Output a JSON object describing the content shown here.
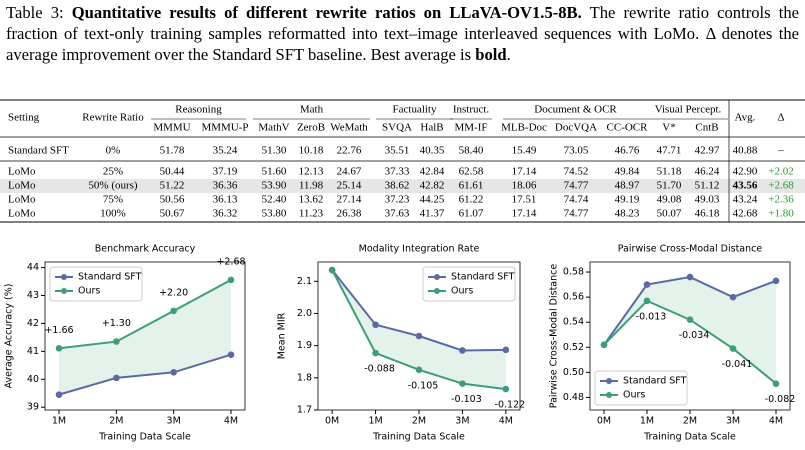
{
  "caption": {
    "label": "Table 3:",
    "title": "Quantitative results of different rewrite ratios on LLaVA-OV1.5-8B.",
    "text": "The rewrite ratio controls the fraction of text-only training samples reformatted into text–image interleaved sequences with LoMo. Δ denotes the average improvement over the Standard SFT baseline. Best average is",
    "bold_word": "bold",
    "end": "."
  },
  "table": {
    "left_columns": [
      "Setting",
      "Rewrite Ratio"
    ],
    "groups": [
      {
        "label": "Reasoning",
        "columns": [
          "MMMU",
          "MMMU-P"
        ]
      },
      {
        "label": "Math",
        "columns": [
          "MathV",
          "ZeroB",
          "WeMath"
        ]
      },
      {
        "label": "Factuality",
        "columns": [
          "SVQA",
          "HalB"
        ]
      },
      {
        "label": "Instruct.",
        "columns": [
          "MM-IF"
        ]
      },
      {
        "label": "Document & OCR",
        "columns": [
          "MLB-Doc",
          "DocVQA",
          "CC-OCR"
        ]
      },
      {
        "label": "Visual Percept.",
        "columns": [
          "V*",
          "CntB"
        ]
      }
    ],
    "right_columns": [
      "Avg.",
      "Δ"
    ],
    "rows": [
      [
        "Standard SFT",
        "0%",
        "51.78",
        "35.24",
        "51.30",
        "10.18",
        "22.76",
        "35.51",
        "40.35",
        "58.40",
        "15.49",
        "73.05",
        "46.76",
        "47.71",
        "42.97",
        "40.88",
        "–"
      ],
      [
        "LoMo",
        "25%",
        "50.44",
        "37.19",
        "51.60",
        "12.13",
        "24.67",
        "37.33",
        "42.84",
        "62.58",
        "17.14",
        "74.52",
        "49.84",
        "51.18",
        "46.24",
        "42.90",
        "+2.02"
      ],
      [
        "LoMo",
        "50% (ours)",
        "51.22",
        "36.36",
        "53.90",
        "11.98",
        "25.14",
        "38.62",
        "42.82",
        "61.61",
        "18.06",
        "74.77",
        "48.97",
        "51.70",
        "51.12",
        "43.56",
        "+2.68"
      ],
      [
        "LoMo",
        "75%",
        "50.56",
        "36.13",
        "52.40",
        "13.62",
        "27.14",
        "37.23",
        "44.25",
        "61.22",
        "17.51",
        "74.74",
        "49.19",
        "49.08",
        "49.03",
        "43.24",
        "+2.36"
      ],
      [
        "LoMo",
        "100%",
        "50.67",
        "36.32",
        "53.80",
        "11.23",
        "26.38",
        "37.63",
        "41.37",
        "61.07",
        "17.14",
        "74.77",
        "48.23",
        "50.07",
        "46.18",
        "42.68",
        "+1.80"
      ]
    ],
    "highlight_row": 2,
    "bold_cell": [
      2,
      15
    ],
    "delta_color": "#2e9a2e"
  },
  "chart_data": [
    {
      "type": "line",
      "title": "Benchmark Accuracy",
      "x_label": "Training Data Scale",
      "y_label": "Average Accuracy (%)",
      "categories": [
        "1M",
        "2M",
        "3M",
        "4M"
      ],
      "series": [
        {
          "name": "Standard SFT",
          "color": "#5b6aa5",
          "values": [
            39.45,
            40.05,
            40.25,
            40.88
          ]
        },
        {
          "name": "Ours",
          "color": "#3e9d79",
          "values": [
            41.11,
            41.35,
            42.45,
            43.56
          ]
        }
      ],
      "annotations": [
        "+1.66",
        "+1.30",
        "+2.20",
        "+2.68"
      ],
      "annotation_position": "above",
      "fill_between": "#dcefe5",
      "ylim": [
        38.9,
        44.2
      ],
      "yticks": [
        39,
        40,
        41,
        42,
        43,
        44
      ],
      "legend": "upper left"
    },
    {
      "type": "line",
      "title": "Modality Integration Rate",
      "x_label": "Training Data Scale",
      "y_label": "Mean MIR",
      "categories": [
        "0M",
        "1M",
        "2M",
        "3M",
        "4M"
      ],
      "series": [
        {
          "name": "Standard SFT",
          "color": "#5b6aa5",
          "values": [
            2.135,
            1.965,
            1.93,
            1.885,
            1.887
          ]
        },
        {
          "name": "Ours",
          "color": "#3e9d79",
          "values": [
            2.135,
            1.877,
            1.825,
            1.782,
            1.765
          ]
        }
      ],
      "annotations": [
        null,
        "-0.088",
        "-0.105",
        "-0.103",
        "-0.122"
      ],
      "annotation_position": "below",
      "fill_between": "#dcefe5",
      "ylim": [
        1.7,
        2.16
      ],
      "yticks": [
        1.7,
        1.8,
        1.9,
        {
          "value": 2,
          "label": "2.0"
        },
        2.1
      ],
      "legend": "upper right"
    },
    {
      "type": "line",
      "title": "Pairwise Cross-Modal Distance",
      "x_label": "Training Data Scale",
      "y_label": "Pairwise Cross-Modal Distance",
      "categories": [
        "0M",
        "1M",
        "2M",
        "3M",
        "4M"
      ],
      "series": [
        {
          "name": "Standard SFT",
          "color": "#5b6aa5",
          "values": [
            0.522,
            0.57,
            0.576,
            0.56,
            0.573
          ]
        },
        {
          "name": "Ours",
          "color": "#3e9d79",
          "values": [
            0.522,
            0.557,
            0.542,
            0.519,
            0.491
          ]
        }
      ],
      "annotations": [
        null,
        "-0.013",
        "-0.034",
        "-0.041",
        "-0.082"
      ],
      "annotation_position": "below",
      "fill_between": "#dcefe5",
      "ylim": [
        0.47,
        0.588
      ],
      "yticks": [
        0.48,
        {
          "value": 0.5,
          "label": "0.50"
        },
        0.52,
        0.54,
        0.56,
        0.58
      ],
      "legend": "lower left"
    }
  ]
}
